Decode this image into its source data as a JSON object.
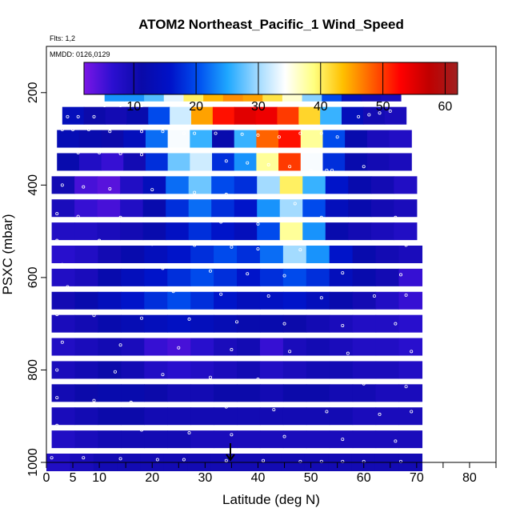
{
  "chart_data": {
    "type": "heatmap",
    "title": "ATOM2 Northeast_Pacific_1 Wind_Speed",
    "flights_label": "Flts: 1,2",
    "dates_label": "MMDD: 0126,0129",
    "xlabel": "Latitude (deg N)",
    "ylabel": "PSXC (mbar)",
    "xlim": [
      0,
      85
    ],
    "ylim": [
      1000,
      100
    ],
    "y_reversed": true,
    "x_ticks": [
      "0",
      "5",
      "10",
      "20",
      "30",
      "40",
      "50",
      "60",
      "70",
      "80"
    ],
    "x_minor_ticks": [
      15,
      25,
      35,
      45,
      55,
      65,
      75,
      85
    ],
    "y_ticks": [
      "200",
      "400",
      "600",
      "800",
      "1000"
    ],
    "colorbar": {
      "range": [
        2,
        62
      ],
      "ticks": [
        "10",
        "20",
        "30",
        "40",
        "50",
        "60"
      ],
      "colors": [
        "#7b16e6",
        "#2b0fd0",
        "#0a0aa8",
        "#0012c8",
        "#0050f0",
        "#1fa8ff",
        "#9cd8ff",
        "#ffffff",
        "#ffff80",
        "#ffc000",
        "#ff6000",
        "#ff0000",
        "#c00000",
        "#a02020"
      ]
    },
    "grid": false,
    "latitude_marker": 35,
    "bins": [
      {
        "p": 200,
        "x0": 11,
        "x1": 67,
        "v": [
          24,
          24,
          27,
          33,
          40,
          44,
          46,
          45,
          41,
          36,
          29,
          20,
          14,
          10,
          9
        ]
      },
      {
        "p": 250,
        "x0": 3,
        "x1": 68,
        "v": [
          14,
          11,
          10,
          12,
          20,
          32,
          45,
          52,
          55,
          54,
          50,
          42,
          26,
          14,
          10,
          9
        ]
      },
      {
        "p": 300,
        "x0": 2,
        "x1": 69,
        "v": [
          13,
          12,
          11,
          14,
          22,
          34,
          26,
          12,
          26,
          48,
          52,
          38,
          20,
          12,
          9,
          8
        ]
      },
      {
        "p": 350,
        "x0": 2,
        "x1": 69,
        "v": [
          12,
          8,
          6,
          10,
          18,
          28,
          32,
          18,
          24,
          38,
          50,
          34,
          18,
          12,
          10,
          9
        ]
      },
      {
        "p": 400,
        "x0": 1,
        "x1": 70,
        "v": [
          10,
          5,
          4,
          8,
          14,
          22,
          28,
          20,
          18,
          30,
          40,
          26,
          16,
          12,
          10,
          8
        ]
      },
      {
        "p": 450,
        "x0": 1,
        "x1": 70,
        "v": [
          9,
          6,
          5,
          8,
          12,
          18,
          22,
          18,
          16,
          24,
          30,
          20,
          14,
          12,
          10,
          9
        ]
      },
      {
        "p": 500,
        "x0": 1,
        "x1": 70,
        "v": [
          8,
          8,
          9,
          10,
          12,
          15,
          18,
          16,
          14,
          20,
          38,
          24,
          12,
          10,
          9,
          8
        ]
      },
      {
        "p": 550,
        "x0": 1,
        "x1": 71,
        "v": [
          7,
          8,
          10,
          12,
          14,
          16,
          18,
          20,
          18,
          22,
          30,
          24,
          16,
          12,
          10,
          9
        ]
      },
      {
        "p": 600,
        "x0": 1,
        "x1": 71,
        "v": [
          8,
          9,
          12,
          14,
          16,
          18,
          20,
          18,
          16,
          18,
          20,
          18,
          14,
          12,
          10,
          6
        ]
      },
      {
        "p": 650,
        "x0": 1,
        "x1": 71,
        "v": [
          10,
          12,
          14,
          16,
          18,
          20,
          18,
          16,
          14,
          15,
          16,
          14,
          12,
          10,
          8,
          6
        ]
      },
      {
        "p": 700,
        "x0": 1,
        "x1": 71,
        "v": [
          9,
          10,
          12,
          13,
          14,
          15,
          14,
          13,
          12,
          12,
          11,
          10,
          9,
          8,
          8,
          7
        ]
      },
      {
        "p": 750,
        "x0": 1,
        "x1": 71,
        "v": [
          8,
          9,
          10,
          9,
          6,
          5,
          7,
          9,
          10,
          6,
          9,
          10,
          9,
          8,
          8,
          7
        ]
      },
      {
        "p": 800,
        "x0": 1,
        "x1": 71,
        "v": [
          9,
          10,
          11,
          10,
          8,
          7,
          8,
          9,
          10,
          8,
          9,
          10,
          10,
          9,
          9,
          8
        ]
      },
      {
        "p": 850,
        "x0": 1,
        "x1": 71,
        "v": [
          10,
          11,
          12,
          12,
          11,
          10,
          10,
          11,
          11,
          10,
          11,
          11,
          10,
          10,
          9,
          9
        ]
      },
      {
        "p": 900,
        "x0": 1,
        "x1": 71,
        "v": [
          9,
          10,
          11,
          11,
          10,
          10,
          10,
          10,
          10,
          10,
          10,
          10,
          10,
          9,
          9,
          9
        ]
      },
      {
        "p": 950,
        "x0": 1,
        "x1": 71,
        "v": [
          8,
          9,
          10,
          10,
          10,
          10,
          9,
          9,
          9,
          9,
          9,
          9,
          9,
          9,
          9,
          9
        ]
      },
      {
        "p": 1000,
        "x0": 0,
        "x1": 71,
        "v": [
          8,
          9,
          10,
          10,
          10,
          10,
          10,
          10,
          10,
          10,
          10,
          10,
          10,
          10,
          10,
          10
        ]
      }
    ],
    "sample_points": [
      [
        11,
        228
      ],
      [
        14,
        228
      ],
      [
        16,
        228
      ],
      [
        18,
        228
      ],
      [
        24,
        200
      ],
      [
        26,
        200
      ],
      [
        27,
        200
      ],
      [
        28,
        200
      ],
      [
        4,
        252
      ],
      [
        6,
        252
      ],
      [
        9,
        252
      ],
      [
        59,
        252
      ],
      [
        61,
        248
      ],
      [
        63,
        244
      ],
      [
        65,
        240
      ],
      [
        3,
        280
      ],
      [
        5,
        280
      ],
      [
        8,
        280
      ],
      [
        12,
        284
      ],
      [
        18,
        284
      ],
      [
        22,
        284
      ],
      [
        26,
        288
      ],
      [
        28,
        288
      ],
      [
        32,
        288
      ],
      [
        37,
        290
      ],
      [
        40,
        292
      ],
      [
        44,
        296
      ],
      [
        48,
        288
      ],
      [
        52,
        288
      ],
      [
        55,
        296
      ],
      [
        6,
        330
      ],
      [
        10,
        330
      ],
      [
        14,
        332
      ],
      [
        18,
        334
      ],
      [
        34,
        348
      ],
      [
        38,
        352
      ],
      [
        42,
        356
      ],
      [
        46,
        360
      ],
      [
        50,
        368
      ],
      [
        53,
        368
      ],
      [
        54,
        368
      ],
      [
        60,
        360
      ],
      [
        3,
        400
      ],
      [
        7,
        404
      ],
      [
        12,
        408
      ],
      [
        20,
        410
      ],
      [
        28,
        416
      ],
      [
        34,
        420
      ],
      [
        40,
        424
      ],
      [
        47,
        440
      ],
      [
        2,
        462
      ],
      [
        6,
        468
      ],
      [
        14,
        470
      ],
      [
        25,
        474
      ],
      [
        33,
        480
      ],
      [
        40,
        484
      ],
      [
        52,
        470
      ],
      [
        66,
        470
      ],
      [
        2,
        520
      ],
      [
        10,
        520
      ],
      [
        20,
        528
      ],
      [
        28,
        530
      ],
      [
        35,
        534
      ],
      [
        40,
        538
      ],
      [
        48,
        540
      ],
      [
        61,
        524
      ],
      [
        68,
        530
      ],
      [
        3,
        572
      ],
      [
        13,
        576
      ],
      [
        22,
        580
      ],
      [
        31,
        586
      ],
      [
        38,
        592
      ],
      [
        45,
        596
      ],
      [
        56,
        590
      ],
      [
        67,
        594
      ],
      [
        4,
        620
      ],
      [
        14,
        626
      ],
      [
        24,
        630
      ],
      [
        33,
        636
      ],
      [
        42,
        640
      ],
      [
        52,
        644
      ],
      [
        62,
        640
      ],
      [
        68,
        638
      ],
      [
        2,
        680
      ],
      [
        9,
        682
      ],
      [
        18,
        688
      ],
      [
        27,
        690
      ],
      [
        36,
        696
      ],
      [
        45,
        700
      ],
      [
        56,
        704
      ],
      [
        66,
        700
      ],
      [
        3,
        740
      ],
      [
        14,
        746
      ],
      [
        25,
        752
      ],
      [
        35,
        756
      ],
      [
        46,
        760
      ],
      [
        57,
        764
      ],
      [
        69,
        760
      ],
      [
        2,
        800
      ],
      [
        13,
        804
      ],
      [
        22,
        810
      ],
      [
        31,
        816
      ],
      [
        40,
        820
      ],
      [
        50,
        826
      ],
      [
        60,
        830
      ],
      [
        68,
        836
      ],
      [
        2,
        860
      ],
      [
        9,
        866
      ],
      [
        16,
        870
      ],
      [
        26,
        876
      ],
      [
        34,
        880
      ],
      [
        43,
        886
      ],
      [
        53,
        890
      ],
      [
        63,
        896
      ],
      [
        69,
        890
      ],
      [
        2,
        920
      ],
      [
        10,
        926
      ],
      [
        18,
        930
      ],
      [
        27,
        936
      ],
      [
        35,
        940
      ],
      [
        45,
        944
      ],
      [
        56,
        950
      ],
      [
        66,
        954
      ],
      [
        1,
        990
      ],
      [
        7,
        990
      ],
      [
        14,
        992
      ],
      [
        21,
        994
      ],
      [
        26,
        994
      ],
      [
        34,
        996
      ],
      [
        41,
        996
      ],
      [
        48,
        998
      ],
      [
        52,
        998
      ],
      [
        56,
        998
      ],
      [
        60,
        998
      ],
      [
        67,
        998
      ]
    ]
  }
}
